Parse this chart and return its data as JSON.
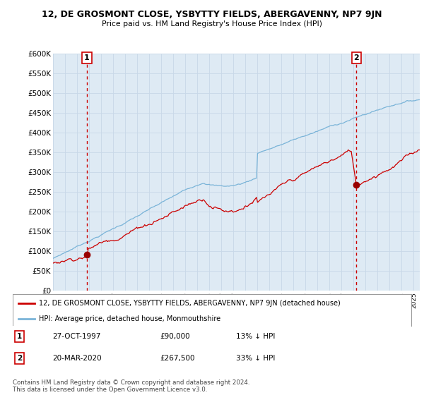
{
  "title": "12, DE GROSMONT CLOSE, YSBYTTY FIELDS, ABERGAVENNY, NP7 9JN",
  "subtitle": "Price paid vs. HM Land Registry's House Price Index (HPI)",
  "ylim": [
    0,
    600000
  ],
  "yticks": [
    0,
    50000,
    100000,
    150000,
    200000,
    250000,
    300000,
    350000,
    400000,
    450000,
    500000,
    550000,
    600000
  ],
  "ytick_labels": [
    "£0",
    "£50K",
    "£100K",
    "£150K",
    "£200K",
    "£250K",
    "£300K",
    "£350K",
    "£400K",
    "£450K",
    "£500K",
    "£550K",
    "£600K"
  ],
  "xlim_start": 1995.0,
  "xlim_end": 2025.5,
  "sale1_x": 1997.82,
  "sale1_y": 90000,
  "sale1_label": "1",
  "sale1_date": "27-OCT-1997",
  "sale1_price": "£90,000",
  "sale1_hpi": "13% ↓ HPI",
  "sale2_x": 2020.22,
  "sale2_y": 267500,
  "sale2_label": "2",
  "sale2_date": "20-MAR-2020",
  "sale2_price": "£267,500",
  "sale2_hpi": "33% ↓ HPI",
  "hpi_color": "#7ab4d8",
  "price_color": "#cc0000",
  "marker_color": "#990000",
  "dashed_line_color": "#cc0000",
  "bg_chart_color": "#deeaf4",
  "legend_price_label": "12, DE GROSMONT CLOSE, YSBYTTY FIELDS, ABERGAVENNY, NP7 9JN (detached house)",
  "legend_hpi_label": "HPI: Average price, detached house, Monmouthshire",
  "footer1": "Contains HM Land Registry data © Crown copyright and database right 2024.",
  "footer2": "This data is licensed under the Open Government Licence v3.0.",
  "background_color": "#ffffff",
  "grid_color": "#c8d8e8"
}
